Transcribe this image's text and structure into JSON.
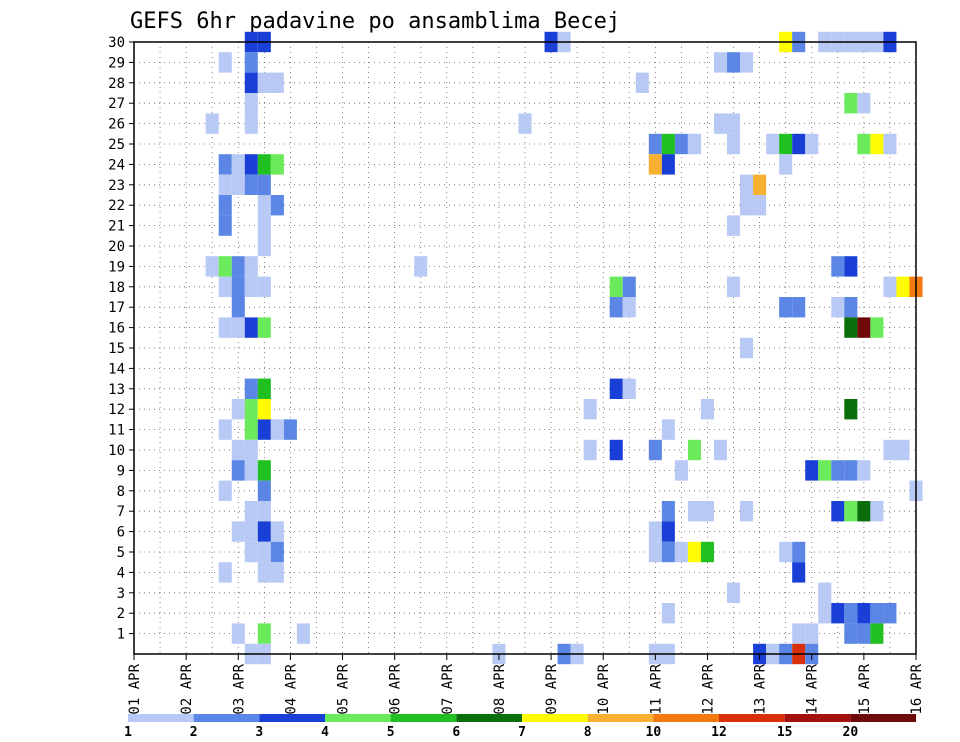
{
  "chart_data": {
    "type": "heatmap",
    "title": "GEFS 6hr padavine po ansamblima Becej",
    "xlabel": "",
    "ylabel": "",
    "x_tick_labels": [
      "01 APR",
      "02 APR",
      "03 APR",
      "04 APR",
      "05 APR",
      "06 APR",
      "07 APR",
      "08 APR",
      "09 APR",
      "10 APR",
      "11 APR",
      "12 APR",
      "13 APR",
      "14 APR",
      "15 APR",
      "16 APR"
    ],
    "y_tick_labels": [
      "1",
      "2",
      "3",
      "4",
      "5",
      "6",
      "7",
      "8",
      "9",
      "10",
      "11",
      "12",
      "13",
      "14",
      "15",
      "16",
      "17",
      "18",
      "19",
      "20",
      "21",
      "22",
      "23",
      "24",
      "25",
      "26",
      "27",
      "28",
      "29",
      "30"
    ],
    "x_range_days": [
      1,
      16
    ],
    "y_range": [
      0,
      30
    ],
    "grid": true,
    "grid_style": "dotted",
    "colorbar": {
      "position": "bottom",
      "levels": [
        "1",
        "2",
        "3",
        "4",
        "5",
        "6",
        "7",
        "8",
        "10",
        "12",
        "15",
        "20"
      ],
      "colors": [
        "#b7c9f4",
        "#5b86e6",
        "#1a3fd6",
        "#6bea5b",
        "#1fc01f",
        "#0a6e0a",
        "#fffb00",
        "#f7b030",
        "#f37a10",
        "#d8300c",
        "#a51010",
        "#6e0a0a"
      ]
    },
    "cells": [
      {
        "member": 30,
        "day": 3.25,
        "level": 2
      },
      {
        "member": 30,
        "day": 3.5,
        "level": 2
      },
      {
        "member": 30,
        "day": 9.0,
        "level": 2
      },
      {
        "member": 30,
        "day": 9.25,
        "level": 0
      },
      {
        "member": 30,
        "day": 13.5,
        "level": 6
      },
      {
        "member": 30,
        "day": 13.75,
        "level": 1
      },
      {
        "member": 30,
        "day": 14.25,
        "level": 0
      },
      {
        "member": 30,
        "day": 14.5,
        "level": 0
      },
      {
        "member": 30,
        "day": 14.75,
        "level": 0
      },
      {
        "member": 30,
        "day": 15.0,
        "level": 0
      },
      {
        "member": 30,
        "day": 15.25,
        "level": 0
      },
      {
        "member": 30,
        "day": 15.5,
        "level": 2
      },
      {
        "member": 29,
        "day": 2.75,
        "level": 0
      },
      {
        "member": 29,
        "day": 3.25,
        "level": 1
      },
      {
        "member": 29,
        "day": 12.25,
        "level": 0
      },
      {
        "member": 29,
        "day": 12.5,
        "level": 1
      },
      {
        "member": 29,
        "day": 12.75,
        "level": 0
      },
      {
        "member": 28,
        "day": 3.25,
        "level": 2
      },
      {
        "member": 28,
        "day": 3.5,
        "level": 0
      },
      {
        "member": 28,
        "day": 3.75,
        "level": 0
      },
      {
        "member": 28,
        "day": 10.75,
        "level": 0
      },
      {
        "member": 27,
        "day": 3.25,
        "level": 0
      },
      {
        "member": 27,
        "day": 14.75,
        "level": 3
      },
      {
        "member": 27,
        "day": 15.0,
        "level": 0
      },
      {
        "member": 26,
        "day": 2.5,
        "level": 0
      },
      {
        "member": 26,
        "day": 3.25,
        "level": 0
      },
      {
        "member": 26,
        "day": 8.5,
        "level": 0
      },
      {
        "member": 26,
        "day": 12.25,
        "level": 0
      },
      {
        "member": 26,
        "day": 12.5,
        "level": 0
      },
      {
        "member": 25,
        "day": 11.0,
        "level": 1
      },
      {
        "member": 25,
        "day": 11.25,
        "level": 4
      },
      {
        "member": 25,
        "day": 11.5,
        "level": 1
      },
      {
        "member": 25,
        "day": 11.75,
        "level": 0
      },
      {
        "member": 25,
        "day": 12.5,
        "level": 0
      },
      {
        "member": 25,
        "day": 13.25,
        "level": 0
      },
      {
        "member": 25,
        "day": 13.5,
        "level": 4
      },
      {
        "member": 25,
        "day": 13.75,
        "level": 2
      },
      {
        "member": 25,
        "day": 14.0,
        "level": 0
      },
      {
        "member": 25,
        "day": 15.0,
        "level": 3
      },
      {
        "member": 25,
        "day": 15.25,
        "level": 6
      },
      {
        "member": 25,
        "day": 15.5,
        "level": 0
      },
      {
        "member": 24,
        "day": 2.75,
        "level": 1
      },
      {
        "member": 24,
        "day": 3.0,
        "level": 0
      },
      {
        "member": 24,
        "day": 3.25,
        "level": 2
      },
      {
        "member": 24,
        "day": 3.5,
        "level": 4
      },
      {
        "member": 24,
        "day": 3.75,
        "level": 3
      },
      {
        "member": 24,
        "day": 11.0,
        "level": 7
      },
      {
        "member": 24,
        "day": 11.25,
        "level": 2
      },
      {
        "member": 24,
        "day": 13.5,
        "level": 0
      },
      {
        "member": 23,
        "day": 2.75,
        "level": 0
      },
      {
        "member": 23,
        "day": 3.0,
        "level": 0
      },
      {
        "member": 23,
        "day": 3.25,
        "level": 1
      },
      {
        "member": 23,
        "day": 3.5,
        "level": 1
      },
      {
        "member": 23,
        "day": 12.75,
        "level": 0
      },
      {
        "member": 23,
        "day": 13.0,
        "level": 7
      },
      {
        "member": 22,
        "day": 2.75,
        "level": 1
      },
      {
        "member": 22,
        "day": 3.5,
        "level": 0
      },
      {
        "member": 22,
        "day": 3.75,
        "level": 1
      },
      {
        "member": 22,
        "day": 12.75,
        "level": 0
      },
      {
        "member": 22,
        "day": 13.0,
        "level": 0
      },
      {
        "member": 21,
        "day": 2.75,
        "level": 1
      },
      {
        "member": 21,
        "day": 3.5,
        "level": 0
      },
      {
        "member": 21,
        "day": 12.5,
        "level": 0
      },
      {
        "member": 20,
        "day": 3.5,
        "level": 0
      },
      {
        "member": 19,
        "day": 2.5,
        "level": 0
      },
      {
        "member": 19,
        "day": 2.75,
        "level": 3
      },
      {
        "member": 19,
        "day": 3.0,
        "level": 1
      },
      {
        "member": 19,
        "day": 3.25,
        "level": 0
      },
      {
        "member": 19,
        "day": 6.5,
        "level": 0
      },
      {
        "member": 19,
        "day": 14.5,
        "level": 1
      },
      {
        "member": 19,
        "day": 14.75,
        "level": 2
      },
      {
        "member": 18,
        "day": 2.75,
        "level": 0
      },
      {
        "member": 18,
        "day": 3.0,
        "level": 1
      },
      {
        "member": 18,
        "day": 3.25,
        "level": 0
      },
      {
        "member": 18,
        "day": 3.5,
        "level": 0
      },
      {
        "member": 18,
        "day": 10.25,
        "level": 3
      },
      {
        "member": 18,
        "day": 10.5,
        "level": 1
      },
      {
        "member": 18,
        "day": 12.5,
        "level": 0
      },
      {
        "member": 18,
        "day": 15.5,
        "level": 0
      },
      {
        "member": 18,
        "day": 15.75,
        "level": 6
      },
      {
        "member": 18,
        "day": 16.0,
        "level": 8
      },
      {
        "member": 17,
        "day": 3.0,
        "level": 1
      },
      {
        "member": 17,
        "day": 10.25,
        "level": 1
      },
      {
        "member": 17,
        "day": 10.5,
        "level": 0
      },
      {
        "member": 17,
        "day": 13.5,
        "level": 1
      },
      {
        "member": 17,
        "day": 13.75,
        "level": 1
      },
      {
        "member": 17,
        "day": 14.5,
        "level": 0
      },
      {
        "member": 17,
        "day": 14.75,
        "level": 1
      },
      {
        "member": 16,
        "day": 2.75,
        "level": 0
      },
      {
        "member": 16,
        "day": 3.0,
        "level": 0
      },
      {
        "member": 16,
        "day": 3.25,
        "level": 2
      },
      {
        "member": 16,
        "day": 3.5,
        "level": 3
      },
      {
        "member": 16,
        "day": 14.75,
        "level": 5
      },
      {
        "member": 16,
        "day": 15.0,
        "level": 11
      },
      {
        "member": 16,
        "day": 15.25,
        "level": 3
      },
      {
        "member": 15,
        "day": 12.75,
        "level": 0
      },
      {
        "member": 13,
        "day": 3.25,
        "level": 1
      },
      {
        "member": 13,
        "day": 3.5,
        "level": 4
      },
      {
        "member": 13,
        "day": 10.25,
        "level": 2
      },
      {
        "member": 13,
        "day": 10.5,
        "level": 0
      },
      {
        "member": 12,
        "day": 3.0,
        "level": 0
      },
      {
        "member": 12,
        "day": 3.25,
        "level": 3
      },
      {
        "member": 12,
        "day": 3.5,
        "level": 6
      },
      {
        "member": 12,
        "day": 9.75,
        "level": 0
      },
      {
        "member": 12,
        "day": 12.0,
        "level": 0
      },
      {
        "member": 12,
        "day": 14.75,
        "level": 5
      },
      {
        "member": 11,
        "day": 2.75,
        "level": 0
      },
      {
        "member": 11,
        "day": 3.25,
        "level": 3
      },
      {
        "member": 11,
        "day": 3.5,
        "level": 2
      },
      {
        "member": 11,
        "day": 3.75,
        "level": 0
      },
      {
        "member": 11,
        "day": 4.0,
        "level": 1
      },
      {
        "member": 11,
        "day": 11.25,
        "level": 0
      },
      {
        "member": 10,
        "day": 3.0,
        "level": 0
      },
      {
        "member": 10,
        "day": 3.25,
        "level": 0
      },
      {
        "member": 10,
        "day": 9.75,
        "level": 0
      },
      {
        "member": 10,
        "day": 10.25,
        "level": 2
      },
      {
        "member": 10,
        "day": 11.0,
        "level": 1
      },
      {
        "member": 10,
        "day": 11.75,
        "level": 3
      },
      {
        "member": 10,
        "day": 12.25,
        "level": 0
      },
      {
        "member": 10,
        "day": 15.5,
        "level": 0
      },
      {
        "member": 10,
        "day": 15.75,
        "level": 0
      },
      {
        "member": 9,
        "day": 3.0,
        "level": 1
      },
      {
        "member": 9,
        "day": 3.25,
        "level": 0
      },
      {
        "member": 9,
        "day": 3.5,
        "level": 4
      },
      {
        "member": 9,
        "day": 11.5,
        "level": 0
      },
      {
        "member": 9,
        "day": 14.0,
        "level": 2
      },
      {
        "member": 9,
        "day": 14.25,
        "level": 3
      },
      {
        "member": 9,
        "day": 14.5,
        "level": 1
      },
      {
        "member": 9,
        "day": 14.75,
        "level": 1
      },
      {
        "member": 9,
        "day": 15.0,
        "level": 0
      },
      {
        "member": 8,
        "day": 2.75,
        "level": 0
      },
      {
        "member": 8,
        "day": 3.5,
        "level": 1
      },
      {
        "member": 8,
        "day": 16.0,
        "level": 0
      },
      {
        "member": 7,
        "day": 3.25,
        "level": 0
      },
      {
        "member": 7,
        "day": 3.5,
        "level": 0
      },
      {
        "member": 7,
        "day": 11.25,
        "level": 1
      },
      {
        "member": 7,
        "day": 11.75,
        "level": 0
      },
      {
        "member": 7,
        "day": 12.0,
        "level": 0
      },
      {
        "member": 7,
        "day": 12.75,
        "level": 0
      },
      {
        "member": 7,
        "day": 14.5,
        "level": 2
      },
      {
        "member": 7,
        "day": 14.75,
        "level": 3
      },
      {
        "member": 7,
        "day": 15.0,
        "level": 5
      },
      {
        "member": 7,
        "day": 15.25,
        "level": 0
      },
      {
        "member": 6,
        "day": 3.0,
        "level": 0
      },
      {
        "member": 6,
        "day": 3.25,
        "level": 0
      },
      {
        "member": 6,
        "day": 3.5,
        "level": 2
      },
      {
        "member": 6,
        "day": 3.75,
        "level": 0
      },
      {
        "member": 6,
        "day": 11.0,
        "level": 0
      },
      {
        "member": 6,
        "day": 11.25,
        "level": 2
      },
      {
        "member": 5,
        "day": 3.25,
        "level": 0
      },
      {
        "member": 5,
        "day": 3.5,
        "level": 0
      },
      {
        "member": 5,
        "day": 3.75,
        "level": 1
      },
      {
        "member": 5,
        "day": 11.0,
        "level": 0
      },
      {
        "member": 5,
        "day": 11.25,
        "level": 1
      },
      {
        "member": 5,
        "day": 11.5,
        "level": 0
      },
      {
        "member": 5,
        "day": 11.75,
        "level": 6
      },
      {
        "member": 5,
        "day": 12.0,
        "level": 4
      },
      {
        "member": 5,
        "day": 13.5,
        "level": 0
      },
      {
        "member": 5,
        "day": 13.75,
        "level": 1
      },
      {
        "member": 4,
        "day": 2.75,
        "level": 0
      },
      {
        "member": 4,
        "day": 3.5,
        "level": 0
      },
      {
        "member": 4,
        "day": 3.75,
        "level": 0
      },
      {
        "member": 4,
        "day": 13.75,
        "level": 2
      },
      {
        "member": 3,
        "day": 12.5,
        "level": 0
      },
      {
        "member": 3,
        "day": 14.25,
        "level": 0
      },
      {
        "member": 2,
        "day": 11.25,
        "level": 0
      },
      {
        "member": 2,
        "day": 14.25,
        "level": 0
      },
      {
        "member": 2,
        "day": 14.5,
        "level": 2
      },
      {
        "member": 2,
        "day": 14.75,
        "level": 1
      },
      {
        "member": 2,
        "day": 15.0,
        "level": 2
      },
      {
        "member": 2,
        "day": 15.25,
        "level": 1
      },
      {
        "member": 2,
        "day": 15.5,
        "level": 1
      },
      {
        "member": 1,
        "day": 3.0,
        "level": 0
      },
      {
        "member": 1,
        "day": 3.5,
        "level": 3
      },
      {
        "member": 1,
        "day": 4.25,
        "level": 0
      },
      {
        "member": 1,
        "day": 13.75,
        "level": 0
      },
      {
        "member": 1,
        "day": 14.0,
        "level": 0
      },
      {
        "member": 1,
        "day": 14.75,
        "level": 1
      },
      {
        "member": 1,
        "day": 15.0,
        "level": 1
      },
      {
        "member": 1,
        "day": 15.25,
        "level": 4
      },
      {
        "member": 0,
        "day": 3.25,
        "level": 0
      },
      {
        "member": 0,
        "day": 3.5,
        "level": 0
      },
      {
        "member": 0,
        "day": 8.0,
        "level": 0
      },
      {
        "member": 0,
        "day": 9.25,
        "level": 1
      },
      {
        "member": 0,
        "day": 9.5,
        "level": 0
      },
      {
        "member": 0,
        "day": 11.0,
        "level": 0
      },
      {
        "member": 0,
        "day": 11.25,
        "level": 0
      },
      {
        "member": 0,
        "day": 13.0,
        "level": 2
      },
      {
        "member": 0,
        "day": 13.25,
        "level": 0
      },
      {
        "member": 0,
        "day": 13.5,
        "level": 1
      },
      {
        "member": 0,
        "day": 13.75,
        "level": 9
      },
      {
        "member": 0,
        "day": 14.0,
        "level": 1
      }
    ]
  }
}
